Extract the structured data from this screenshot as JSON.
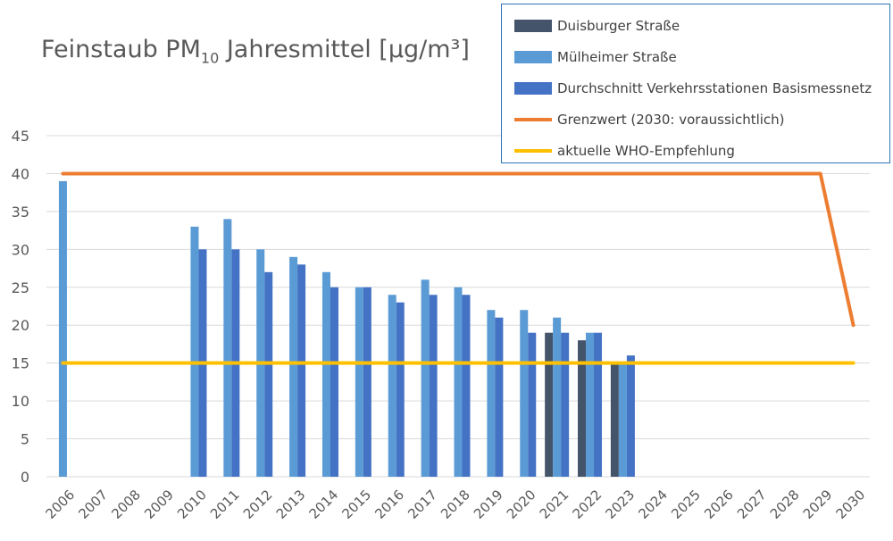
{
  "title_main": "Feinstaub PM",
  "title_sub": "10",
  "title_rest": " Jahresmittel [µg/m³]",
  "chart_data": {
    "type": "bar",
    "categories": [
      "2006",
      "2007",
      "2008",
      "2009",
      "2010",
      "2011",
      "2012",
      "2013",
      "2014",
      "2015",
      "2016",
      "2017",
      "2018",
      "2019",
      "2020",
      "2021",
      "2022",
      "2023",
      "2024",
      "2025",
      "2026",
      "2027",
      "2028",
      "2029",
      "2030"
    ],
    "ylim": [
      0,
      45
    ],
    "yticks": [
      0,
      5,
      10,
      15,
      20,
      25,
      30,
      35,
      40,
      45
    ],
    "grid": true,
    "legend_position": "top-right",
    "series": [
      {
        "name": "Duisburger Straße",
        "type": "bar",
        "color": "#44546a",
        "values": [
          null,
          null,
          null,
          null,
          null,
          null,
          null,
          null,
          null,
          null,
          null,
          null,
          null,
          null,
          null,
          19,
          18,
          15,
          null,
          null,
          null,
          null,
          null,
          null,
          null
        ]
      },
      {
        "name": "Mülheimer Straße",
        "type": "bar",
        "color": "#5b9bd5",
        "values": [
          39,
          null,
          null,
          null,
          33,
          34,
          30,
          29,
          27,
          25,
          24,
          26,
          25,
          22,
          22,
          21,
          19,
          15,
          null,
          null,
          null,
          null,
          null,
          null,
          null
        ]
      },
      {
        "name": "Durchschnitt Verkehrsstationen Basismessnetz",
        "type": "bar",
        "color": "#4472c4",
        "values": [
          null,
          null,
          null,
          null,
          30,
          30,
          27,
          28,
          25,
          25,
          23,
          24,
          24,
          21,
          19,
          19,
          19,
          16,
          null,
          null,
          null,
          null,
          null,
          null,
          null
        ]
      },
      {
        "name": "Grenzwert (2030: voraussichtlich)",
        "type": "line",
        "color": "#ed7d31",
        "values": [
          40,
          40,
          40,
          40,
          40,
          40,
          40,
          40,
          40,
          40,
          40,
          40,
          40,
          40,
          40,
          40,
          40,
          40,
          40,
          40,
          40,
          40,
          40,
          40,
          20
        ]
      },
      {
        "name": "aktuelle WHO-Empfehlung",
        "type": "line",
        "color": "#ffc000",
        "values": [
          15,
          15,
          15,
          15,
          15,
          15,
          15,
          15,
          15,
          15,
          15,
          15,
          15,
          15,
          15,
          15,
          15,
          15,
          15,
          15,
          15,
          15,
          15,
          15,
          15
        ]
      }
    ]
  }
}
